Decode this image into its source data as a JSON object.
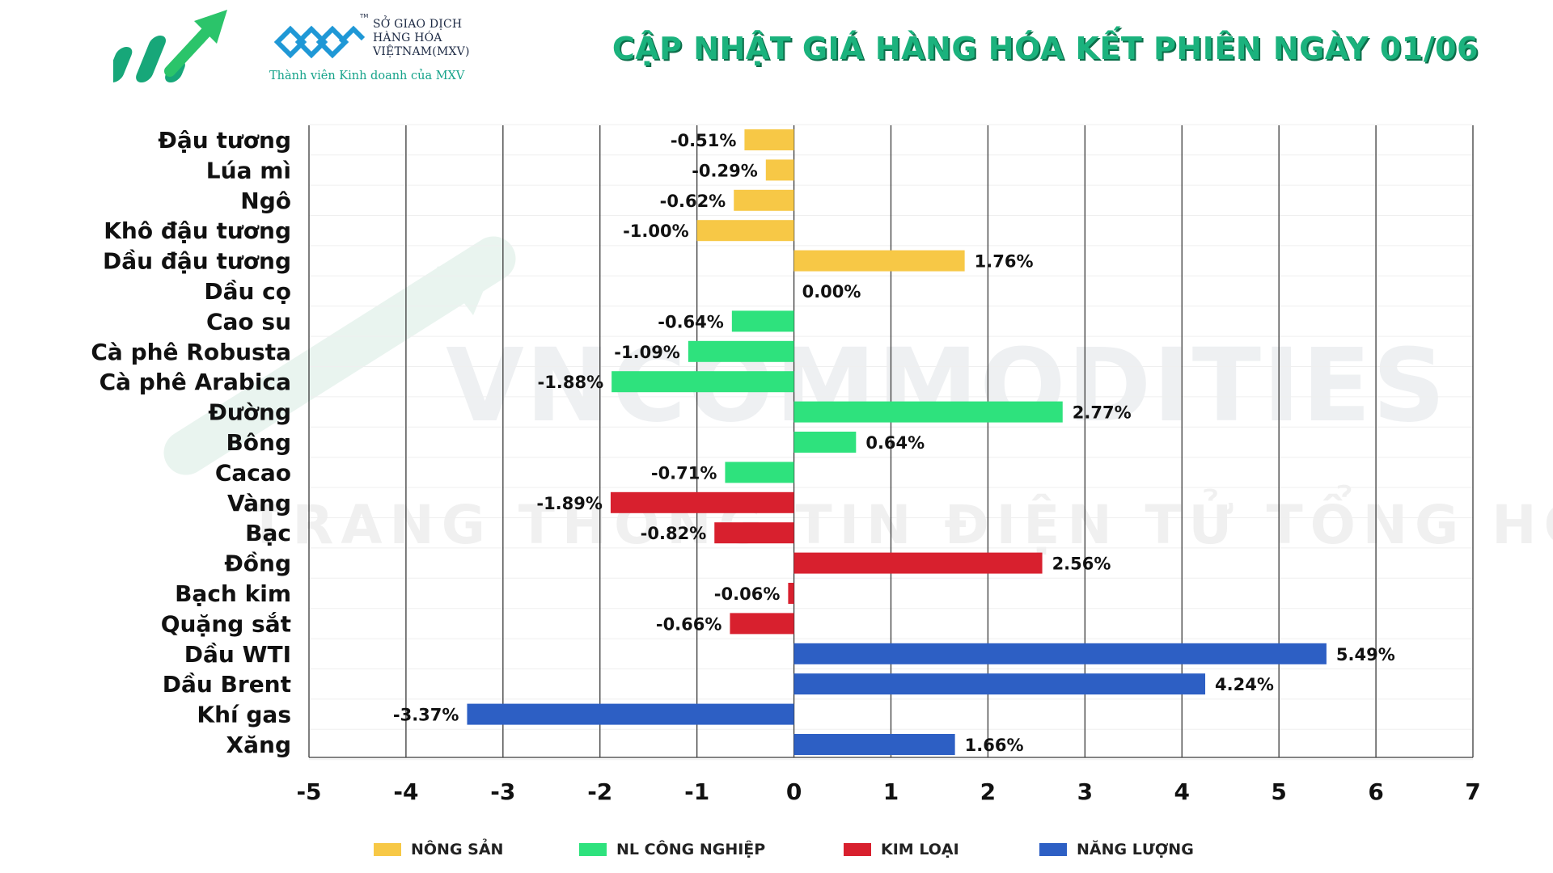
{
  "header": {
    "exchange_lines": [
      "SỞ GIAO DỊCH",
      "HÀNG HÓA",
      "VIỆTNAM(MXV)"
    ],
    "exchange_tm": "TM",
    "member_text": "Thành viên Kinh doanh của MXV",
    "title": "CẬP NHẬT GIÁ HÀNG HÓA KẾT PHIÊN NGÀY 01/06"
  },
  "watermark": {
    "line1": "VNCOMMODITIES",
    "line2": "TRANG THÔNG TIN ĐIỆN TỬ TỔNG HỢP"
  },
  "colors": {
    "nong_san": "#f7c846",
    "nl_cong_nghiep": "#2ee27d",
    "kim_loai": "#d8202e",
    "nang_luong": "#2d5fc4",
    "title": "#1bb27d"
  },
  "chart_data": {
    "type": "bar",
    "orientation": "horizontal",
    "title": "CẬP NHẬT GIÁ HÀNG HÓA KẾT PHIÊN NGÀY 01/06",
    "xlabel": "",
    "ylabel": "",
    "xlim": [
      -5,
      7
    ],
    "xticks": [
      -5,
      -4,
      -3,
      -2,
      -1,
      0,
      1,
      2,
      3,
      4,
      5,
      6,
      7
    ],
    "grid": true,
    "legend_position": "bottom",
    "categories": [
      "Đậu tương",
      "Lúa mì",
      "Ngô",
      "Khô đậu tương",
      "Dầu đậu tương",
      "Dầu cọ",
      "Cao su",
      "Cà phê Robusta",
      "Cà phê Arabica",
      "Đường",
      "Bông",
      "Cacao",
      "Vàng",
      "Bạc",
      "Đồng",
      "Bạch kim",
      "Quặng sắt",
      "Dầu WTI",
      "Dầu Brent",
      "Khí gas",
      "Xăng"
    ],
    "values": [
      -0.51,
      -0.29,
      -0.62,
      -1.0,
      1.76,
      0.0,
      -0.64,
      -1.09,
      -1.88,
      2.77,
      0.64,
      -0.71,
      -1.89,
      -0.82,
      2.56,
      -0.06,
      -0.66,
      5.49,
      4.24,
      -3.37,
      1.66
    ],
    "labels": [
      "-0.51%",
      "-0.29%",
      "-0.62%",
      "-1.00%",
      "1.76%",
      "0.00%",
      "-0.64%",
      "-1.09%",
      "-1.88%",
      "2.77%",
      "0.64%",
      "-0.71%",
      "-1.89%",
      "-0.82%",
      "2.56%",
      "-0.06%",
      "-0.66%",
      "5.49%",
      "4.24%",
      "-3.37%",
      "1.66%"
    ],
    "groups": [
      "nong_san",
      "nong_san",
      "nong_san",
      "nong_san",
      "nong_san",
      "nong_san",
      "nl_cong_nghiep",
      "nl_cong_nghiep",
      "nl_cong_nghiep",
      "nl_cong_nghiep",
      "nl_cong_nghiep",
      "nl_cong_nghiep",
      "kim_loai",
      "kim_loai",
      "kim_loai",
      "kim_loai",
      "kim_loai",
      "nang_luong",
      "nang_luong",
      "nang_luong",
      "nang_luong"
    ],
    "legend": [
      {
        "key": "nong_san",
        "label": "NÔNG SẢN"
      },
      {
        "key": "nl_cong_nghiep",
        "label": "NL CÔNG NGHIỆP"
      },
      {
        "key": "kim_loai",
        "label": "KIM LOẠI"
      },
      {
        "key": "nang_luong",
        "label": "NĂNG LƯỢNG"
      }
    ]
  }
}
